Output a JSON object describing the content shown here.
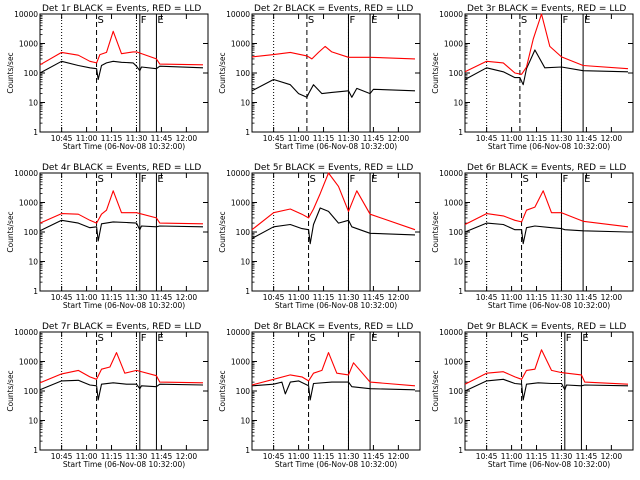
{
  "figure": {
    "background": "#ffffff",
    "axis_color": "#000000",
    "events_color": "#000000",
    "lld_color": "#ff0000"
  },
  "chart_data": [
    {
      "panel": "det1r",
      "title": "Det 1r BLACK = Events, RED = LLD",
      "xlabel": "Start Time (06-Nov-08 10:32:00)",
      "ylabel": "Counts/sec",
      "x_ticks": [
        "10:45",
        "11:00",
        "11:15",
        "11:30",
        "11:45",
        "12:00"
      ],
      "y_ticks": [
        "1",
        "10",
        "100",
        "1000",
        "10000"
      ],
      "ylim": [
        1,
        10000
      ],
      "markers": [
        {
          "label": "S",
          "style": "dashed",
          "x": "11:06"
        },
        {
          "label": "F",
          "style": "solid",
          "x": "11:32"
        },
        {
          "label": "E",
          "style": "solid",
          "x": "11:42"
        }
      ],
      "series": [
        {
          "color": "#000000",
          "x": [
            "10:32",
            "10:45",
            "10:55",
            "11:02",
            "11:06",
            "11:07",
            "11:09",
            "11:12",
            "11:16",
            "11:21",
            "11:28",
            "11:30",
            "11:32",
            "11:33",
            "11:42",
            "11:44",
            "12:10"
          ],
          "values": [
            100,
            250,
            180,
            150,
            140,
            60,
            180,
            220,
            250,
            230,
            220,
            170,
            120,
            160,
            140,
            170,
            150
          ]
        },
        {
          "color": "#ff0000",
          "x": [
            "10:32",
            "10:45",
            "10:55",
            "11:02",
            "11:06",
            "11:08",
            "11:12",
            "11:16",
            "11:21",
            "11:28",
            "11:30",
            "11:42",
            "11:44",
            "12:10"
          ],
          "values": [
            190,
            500,
            400,
            250,
            220,
            420,
            500,
            2600,
            450,
            520,
            520,
            300,
            200,
            190
          ]
        }
      ]
    },
    {
      "panel": "det2r",
      "title": "Det 2r BLACK = Events, RED = LLD",
      "xlabel": "Start Time (06-Nov-08 10:32:00)",
      "ylabel": "Counts/sec",
      "x_ticks": [
        "10:45",
        "11:00",
        "11:15",
        "11:30",
        "11:45",
        "12:00"
      ],
      "y_ticks": [
        "1",
        "10",
        "100",
        "1000",
        "10000"
      ],
      "ylim": [
        1,
        10000
      ],
      "markers": [
        {
          "label": "S",
          "style": "dashed",
          "x": "11:05"
        },
        {
          "label": "F",
          "style": "solid",
          "x": "11:30"
        },
        {
          "label": "E",
          "style": "solid",
          "x": "11:43"
        }
      ],
      "series": [
        {
          "color": "#000000",
          "x": [
            "10:32",
            "10:45",
            "10:55",
            "11:00",
            "11:05",
            "11:06",
            "11:09",
            "11:14",
            "11:20",
            "11:30",
            "11:32",
            "11:35",
            "11:43",
            "11:45",
            "12:10"
          ],
          "values": [
            25,
            60,
            40,
            20,
            15,
            20,
            40,
            20,
            22,
            25,
            15,
            30,
            20,
            28,
            25
          ]
        },
        {
          "color": "#ff0000",
          "x": [
            "10:32",
            "10:45",
            "10:55",
            "11:05",
            "11:08",
            "11:12",
            "11:16",
            "11:20",
            "11:30",
            "11:43",
            "12:10"
          ],
          "values": [
            350,
            420,
            500,
            380,
            300,
            500,
            800,
            520,
            340,
            340,
            300
          ]
        }
      ]
    },
    {
      "panel": "det3r",
      "title": "Det 3r BLACK = Events, RED = LLD",
      "xlabel": "Start Time (06-Nov-08 10:32:00)",
      "ylabel": "Counts/sec",
      "x_ticks": [
        "10:45",
        "11:00",
        "11:15",
        "11:30",
        "11:45",
        "12:00"
      ],
      "y_ticks": [
        "1",
        "10",
        "100",
        "1000",
        "10000"
      ],
      "ylim": [
        1,
        10000
      ],
      "markers": [
        {
          "label": "S",
          "style": "dashed",
          "x": "11:05"
        },
        {
          "label": "F",
          "style": "solid",
          "x": "11:30"
        },
        {
          "label": "E",
          "style": "solid",
          "x": "11:43"
        }
      ],
      "series": [
        {
          "color": "#000000",
          "x": [
            "10:32",
            "10:45",
            "10:55",
            "11:02",
            "11:05",
            "11:07",
            "11:09",
            "11:14",
            "11:20",
            "11:30",
            "11:43",
            "12:10"
          ],
          "values": [
            60,
            150,
            110,
            70,
            70,
            40,
            140,
            600,
            150,
            160,
            120,
            110
          ]
        },
        {
          "color": "#ff0000",
          "x": [
            "10:32",
            "10:45",
            "10:55",
            "11:02",
            "11:06",
            "11:09",
            "11:13",
            "11:18",
            "11:23",
            "11:30",
            "11:43",
            "12:10"
          ],
          "values": [
            110,
            250,
            220,
            100,
            90,
            160,
            1400,
            10000,
            800,
            350,
            180,
            140
          ]
        }
      ]
    },
    {
      "panel": "det4r",
      "title": "Det 4r BLACK = Events, RED = LLD",
      "xlabel": "Start Time (06-Nov-08 10:32:00)",
      "ylabel": "Counts/sec",
      "x_ticks": [
        "10:45",
        "11:00",
        "11:15",
        "11:30",
        "11:45",
        "12:00"
      ],
      "y_ticks": [
        "1",
        "10",
        "100",
        "1000",
        "10000"
      ],
      "ylim": [
        1,
        10000
      ],
      "markers": [
        {
          "label": "S",
          "style": "dashed",
          "x": "11:06"
        },
        {
          "label": "F",
          "style": "solid",
          "x": "11:32"
        },
        {
          "label": "E",
          "style": "solid",
          "x": "11:42"
        }
      ],
      "series": [
        {
          "color": "#000000",
          "x": [
            "10:32",
            "10:45",
            "10:55",
            "11:02",
            "11:06",
            "11:07",
            "11:09",
            "11:16",
            "11:24",
            "11:30",
            "11:32",
            "11:33",
            "11:42",
            "11:44",
            "12:10"
          ],
          "values": [
            110,
            250,
            200,
            140,
            150,
            50,
            190,
            220,
            210,
            200,
            120,
            160,
            150,
            160,
            150
          ]
        },
        {
          "color": "#ff0000",
          "x": [
            "10:32",
            "10:45",
            "10:55",
            "11:02",
            "11:06",
            "11:09",
            "11:12",
            "11:16",
            "11:21",
            "11:30",
            "11:42",
            "11:44",
            "12:10"
          ],
          "values": [
            200,
            420,
            400,
            250,
            200,
            400,
            550,
            2500,
            450,
            450,
            300,
            200,
            190
          ]
        }
      ]
    },
    {
      "panel": "det5r",
      "title": "Det 5r BLACK = Events, RED = LLD",
      "xlabel": "Start Time (06-Nov-08 10:32:00)",
      "ylabel": "Counts/sec",
      "x_ticks": [
        "10:45",
        "11:00",
        "11:15",
        "11:30",
        "11:45",
        "12:00"
      ],
      "y_ticks": [
        "1",
        "10",
        "100",
        "1000",
        "10000"
      ],
      "ylim": [
        1,
        10000
      ],
      "markers": [
        {
          "label": "S",
          "style": "dashed",
          "x": "11:06"
        },
        {
          "label": "F",
          "style": "solid",
          "x": "11:30"
        },
        {
          "label": "E",
          "style": "solid",
          "x": "11:43"
        }
      ],
      "series": [
        {
          "color": "#000000",
          "x": [
            "10:32",
            "10:45",
            "10:55",
            "11:02",
            "11:06",
            "11:07",
            "11:09",
            "11:13",
            "11:18",
            "11:24",
            "11:30",
            "11:32",
            "11:43",
            "12:10"
          ],
          "values": [
            60,
            150,
            180,
            130,
            120,
            40,
            180,
            650,
            500,
            200,
            250,
            150,
            90,
            80
          ]
        },
        {
          "color": "#ff0000",
          "x": [
            "10:32",
            "10:45",
            "10:55",
            "11:02",
            "11:06",
            "11:09",
            "11:13",
            "11:18",
            "11:24",
            "11:30",
            "11:35",
            "11:43",
            "12:10"
          ],
          "values": [
            120,
            450,
            600,
            400,
            300,
            600,
            2000,
            10000,
            3500,
            500,
            2500,
            400,
            120
          ]
        }
      ]
    },
    {
      "panel": "det6r",
      "title": "Det 6r BLACK = Events, RED = LLD",
      "xlabel": "Start Time (06-Nov-08 10:32:00)",
      "ylabel": "Counts/sec",
      "x_ticks": [
        "10:45",
        "11:00",
        "11:15",
        "11:30",
        "11:45",
        "12:00"
      ],
      "y_ticks": [
        "1",
        "10",
        "100",
        "1000",
        "10000"
      ],
      "ylim": [
        1,
        10000
      ],
      "markers": [
        {
          "label": "S",
          "style": "dashed",
          "x": "11:06"
        },
        {
          "label": "F",
          "style": "solid",
          "x": "11:30"
        },
        {
          "label": "E",
          "style": "solid",
          "x": "11:43"
        }
      ],
      "series": [
        {
          "color": "#000000",
          "x": [
            "10:32",
            "10:45",
            "10:55",
            "11:02",
            "11:06",
            "11:07",
            "11:09",
            "11:14",
            "11:24",
            "11:30",
            "11:32",
            "11:43",
            "12:10"
          ],
          "values": [
            100,
            200,
            180,
            120,
            120,
            40,
            140,
            160,
            140,
            130,
            120,
            110,
            100
          ]
        },
        {
          "color": "#ff0000",
          "x": [
            "10:32",
            "10:45",
            "10:55",
            "11:02",
            "11:06",
            "11:09",
            "11:14",
            "11:19",
            "11:24",
            "11:30",
            "11:43",
            "12:10"
          ],
          "values": [
            180,
            420,
            350,
            250,
            220,
            550,
            700,
            2500,
            450,
            450,
            230,
            150
          ]
        }
      ]
    },
    {
      "panel": "det7r",
      "title": "Det 7r BLACK = Events, RED = LLD",
      "xlabel": "Start Time (06-Nov-08 10:32:00)",
      "ylabel": "Counts/sec",
      "x_ticks": [
        "10:45",
        "11:00",
        "11:15",
        "11:30",
        "11:45",
        "12:00"
      ],
      "y_ticks": [
        "1",
        "10",
        "100",
        "1000",
        "10000"
      ],
      "ylim": [
        1,
        10000
      ],
      "markers": [
        {
          "label": "S",
          "style": "dashed",
          "x": "11:06"
        },
        {
          "label": "F",
          "style": "solid",
          "x": "11:32"
        },
        {
          "label": "E",
          "style": "solid",
          "x": "11:42"
        }
      ],
      "series": [
        {
          "color": "#000000",
          "x": [
            "10:32",
            "10:45",
            "10:55",
            "11:02",
            "11:06",
            "11:07",
            "11:09",
            "11:16",
            "11:24",
            "11:30",
            "11:32",
            "11:33",
            "11:42",
            "11:44",
            "12:10"
          ],
          "values": [
            110,
            220,
            230,
            160,
            150,
            50,
            170,
            190,
            170,
            170,
            120,
            150,
            140,
            170,
            160
          ]
        },
        {
          "color": "#ff0000",
          "x": [
            "10:32",
            "10:45",
            "10:55",
            "11:02",
            "11:06",
            "11:09",
            "11:14",
            "11:18",
            "11:23",
            "11:30",
            "11:42",
            "11:44",
            "12:10"
          ],
          "values": [
            190,
            380,
            500,
            300,
            250,
            550,
            650,
            2000,
            400,
            500,
            330,
            200,
            190
          ]
        }
      ]
    },
    {
      "panel": "det8r",
      "title": "Det 8r BLACK = Events, RED = LLD",
      "xlabel": "Start Time (06-Nov-08 10:32:00)",
      "ylabel": "Counts/sec",
      "x_ticks": [
        "10:45",
        "11:00",
        "11:15",
        "11:30",
        "11:45",
        "12:00"
      ],
      "y_ticks": [
        "1",
        "10",
        "100",
        "1000",
        "10000"
      ],
      "ylim": [
        1,
        10000
      ],
      "markers": [
        {
          "label": "S",
          "style": "dashed",
          "x": "11:06"
        },
        {
          "label": "F",
          "style": "solid",
          "x": "11:30"
        },
        {
          "label": "E",
          "style": "solid",
          "x": "11:43"
        }
      ],
      "series": [
        {
          "color": "#000000",
          "x": [
            "10:32",
            "10:45",
            "10:50",
            "10:52",
            "10:55",
            "11:00",
            "11:06",
            "11:07",
            "11:09",
            "11:20",
            "11:30",
            "11:32",
            "11:43",
            "12:10"
          ],
          "values": [
            150,
            170,
            200,
            80,
            200,
            220,
            150,
            50,
            180,
            200,
            200,
            140,
            120,
            110
          ]
        },
        {
          "color": "#ff0000",
          "x": [
            "10:32",
            "10:45",
            "10:55",
            "11:02",
            "11:06",
            "11:09",
            "11:14",
            "11:18",
            "11:23",
            "11:30",
            "11:33",
            "11:43",
            "12:10"
          ],
          "values": [
            160,
            250,
            350,
            300,
            220,
            400,
            500,
            2000,
            400,
            350,
            900,
            200,
            150
          ]
        }
      ]
    },
    {
      "panel": "det9r",
      "title": "Det 9r BLACK = Events, RED = LLD",
      "xlabel": "Start Time (06-Nov-08 10:32:00)",
      "ylabel": "Counts/sec",
      "x_ticks": [
        "10:45",
        "11:00",
        "11:15",
        "11:30",
        "11:45",
        "12:00"
      ],
      "y_ticks": [
        "1",
        "10",
        "100",
        "1000",
        "10000"
      ],
      "ylim": [
        1,
        10000
      ],
      "markers": [
        {
          "label": "S",
          "style": "dashed",
          "x": "11:06"
        },
        {
          "label": "F",
          "style": "solid",
          "x": "11:32"
        },
        {
          "label": "E",
          "style": "solid",
          "x": "11:42"
        }
      ],
      "series": [
        {
          "color": "#000000",
          "x": [
            "10:32",
            "10:45",
            "10:55",
            "11:02",
            "11:06",
            "11:07",
            "11:09",
            "11:16",
            "11:24",
            "11:30",
            "11:32",
            "11:33",
            "11:42",
            "11:44",
            "12:10"
          ],
          "values": [
            100,
            220,
            250,
            180,
            170,
            50,
            170,
            190,
            180,
            180,
            110,
            160,
            150,
            160,
            150
          ]
        },
        {
          "color": "#ff0000",
          "x": [
            "10:32",
            "10:45",
            "10:55",
            "11:02",
            "11:06",
            "11:09",
            "11:14",
            "11:18",
            "11:24",
            "11:30",
            "11:42",
            "11:44",
            "12:10"
          ],
          "values": [
            170,
            400,
            450,
            300,
            250,
            500,
            550,
            2500,
            500,
            420,
            350,
            200,
            170
          ]
        }
      ]
    }
  ]
}
